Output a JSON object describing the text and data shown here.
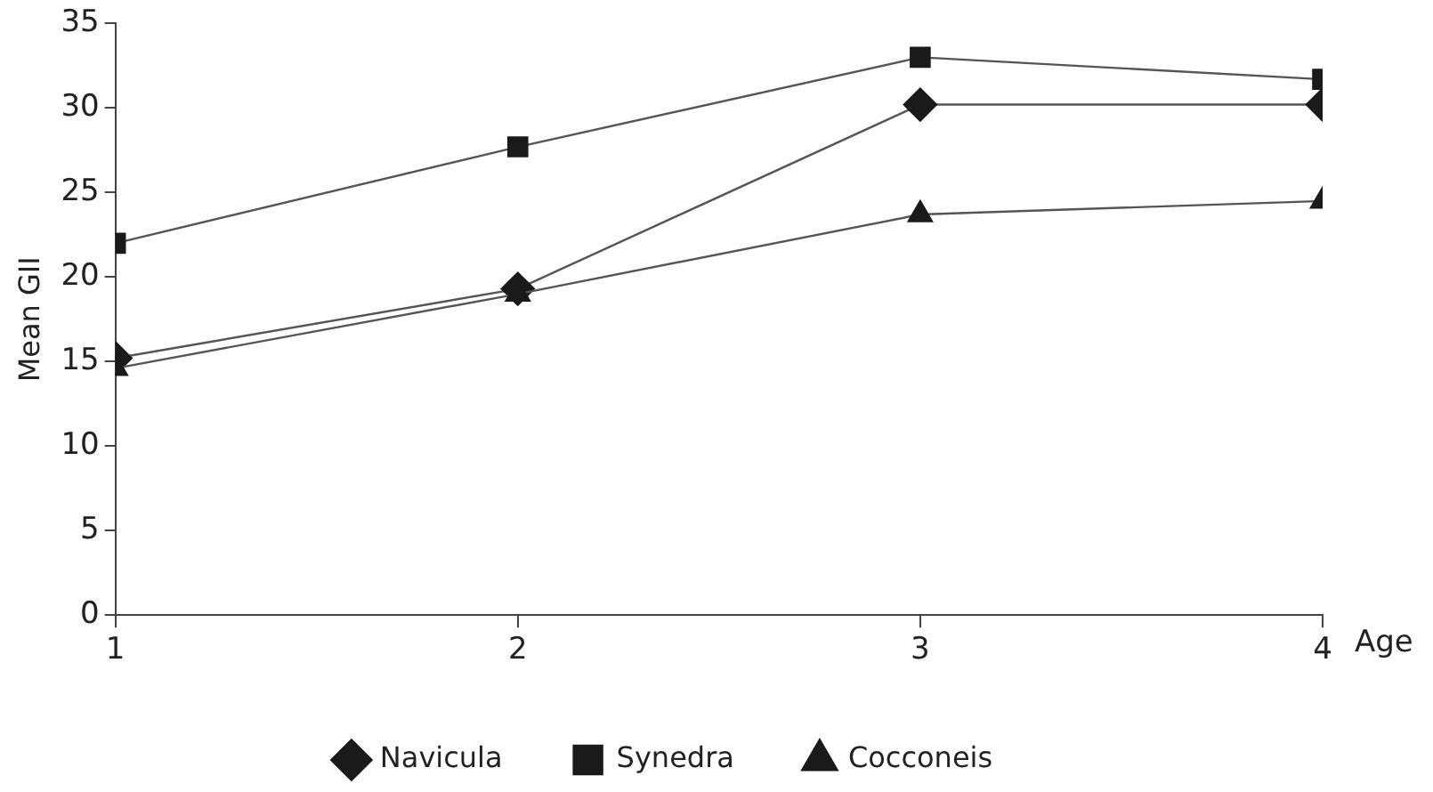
{
  "chart_data": {
    "type": "line",
    "ylabel": "Mean GII",
    "xlabel": "Age",
    "x": [
      1,
      2,
      3,
      4
    ],
    "xlim": [
      1,
      4
    ],
    "xticks": [
      1,
      2,
      3,
      4
    ],
    "ylim": [
      0,
      35
    ],
    "yticks": [
      0,
      5,
      10,
      15,
      20,
      25,
      30,
      35
    ],
    "grid": false,
    "legend": "bottom",
    "line_style": "solid",
    "series": [
      {
        "name": "Navicula",
        "color": "#1a1a1a",
        "marker": "diamond",
        "values": [
          15.2,
          19.3,
          30.2,
          30.2
        ]
      },
      {
        "name": "Synedra",
        "color": "#1a1a1a",
        "marker": "square",
        "values": [
          22,
          27.7,
          33,
          31.7
        ]
      },
      {
        "name": "Cocconeis",
        "color": "#1a1a1a",
        "marker": "triangle",
        "values": [
          14.6,
          19.0,
          23.7,
          24.5
        ]
      }
    ]
  }
}
